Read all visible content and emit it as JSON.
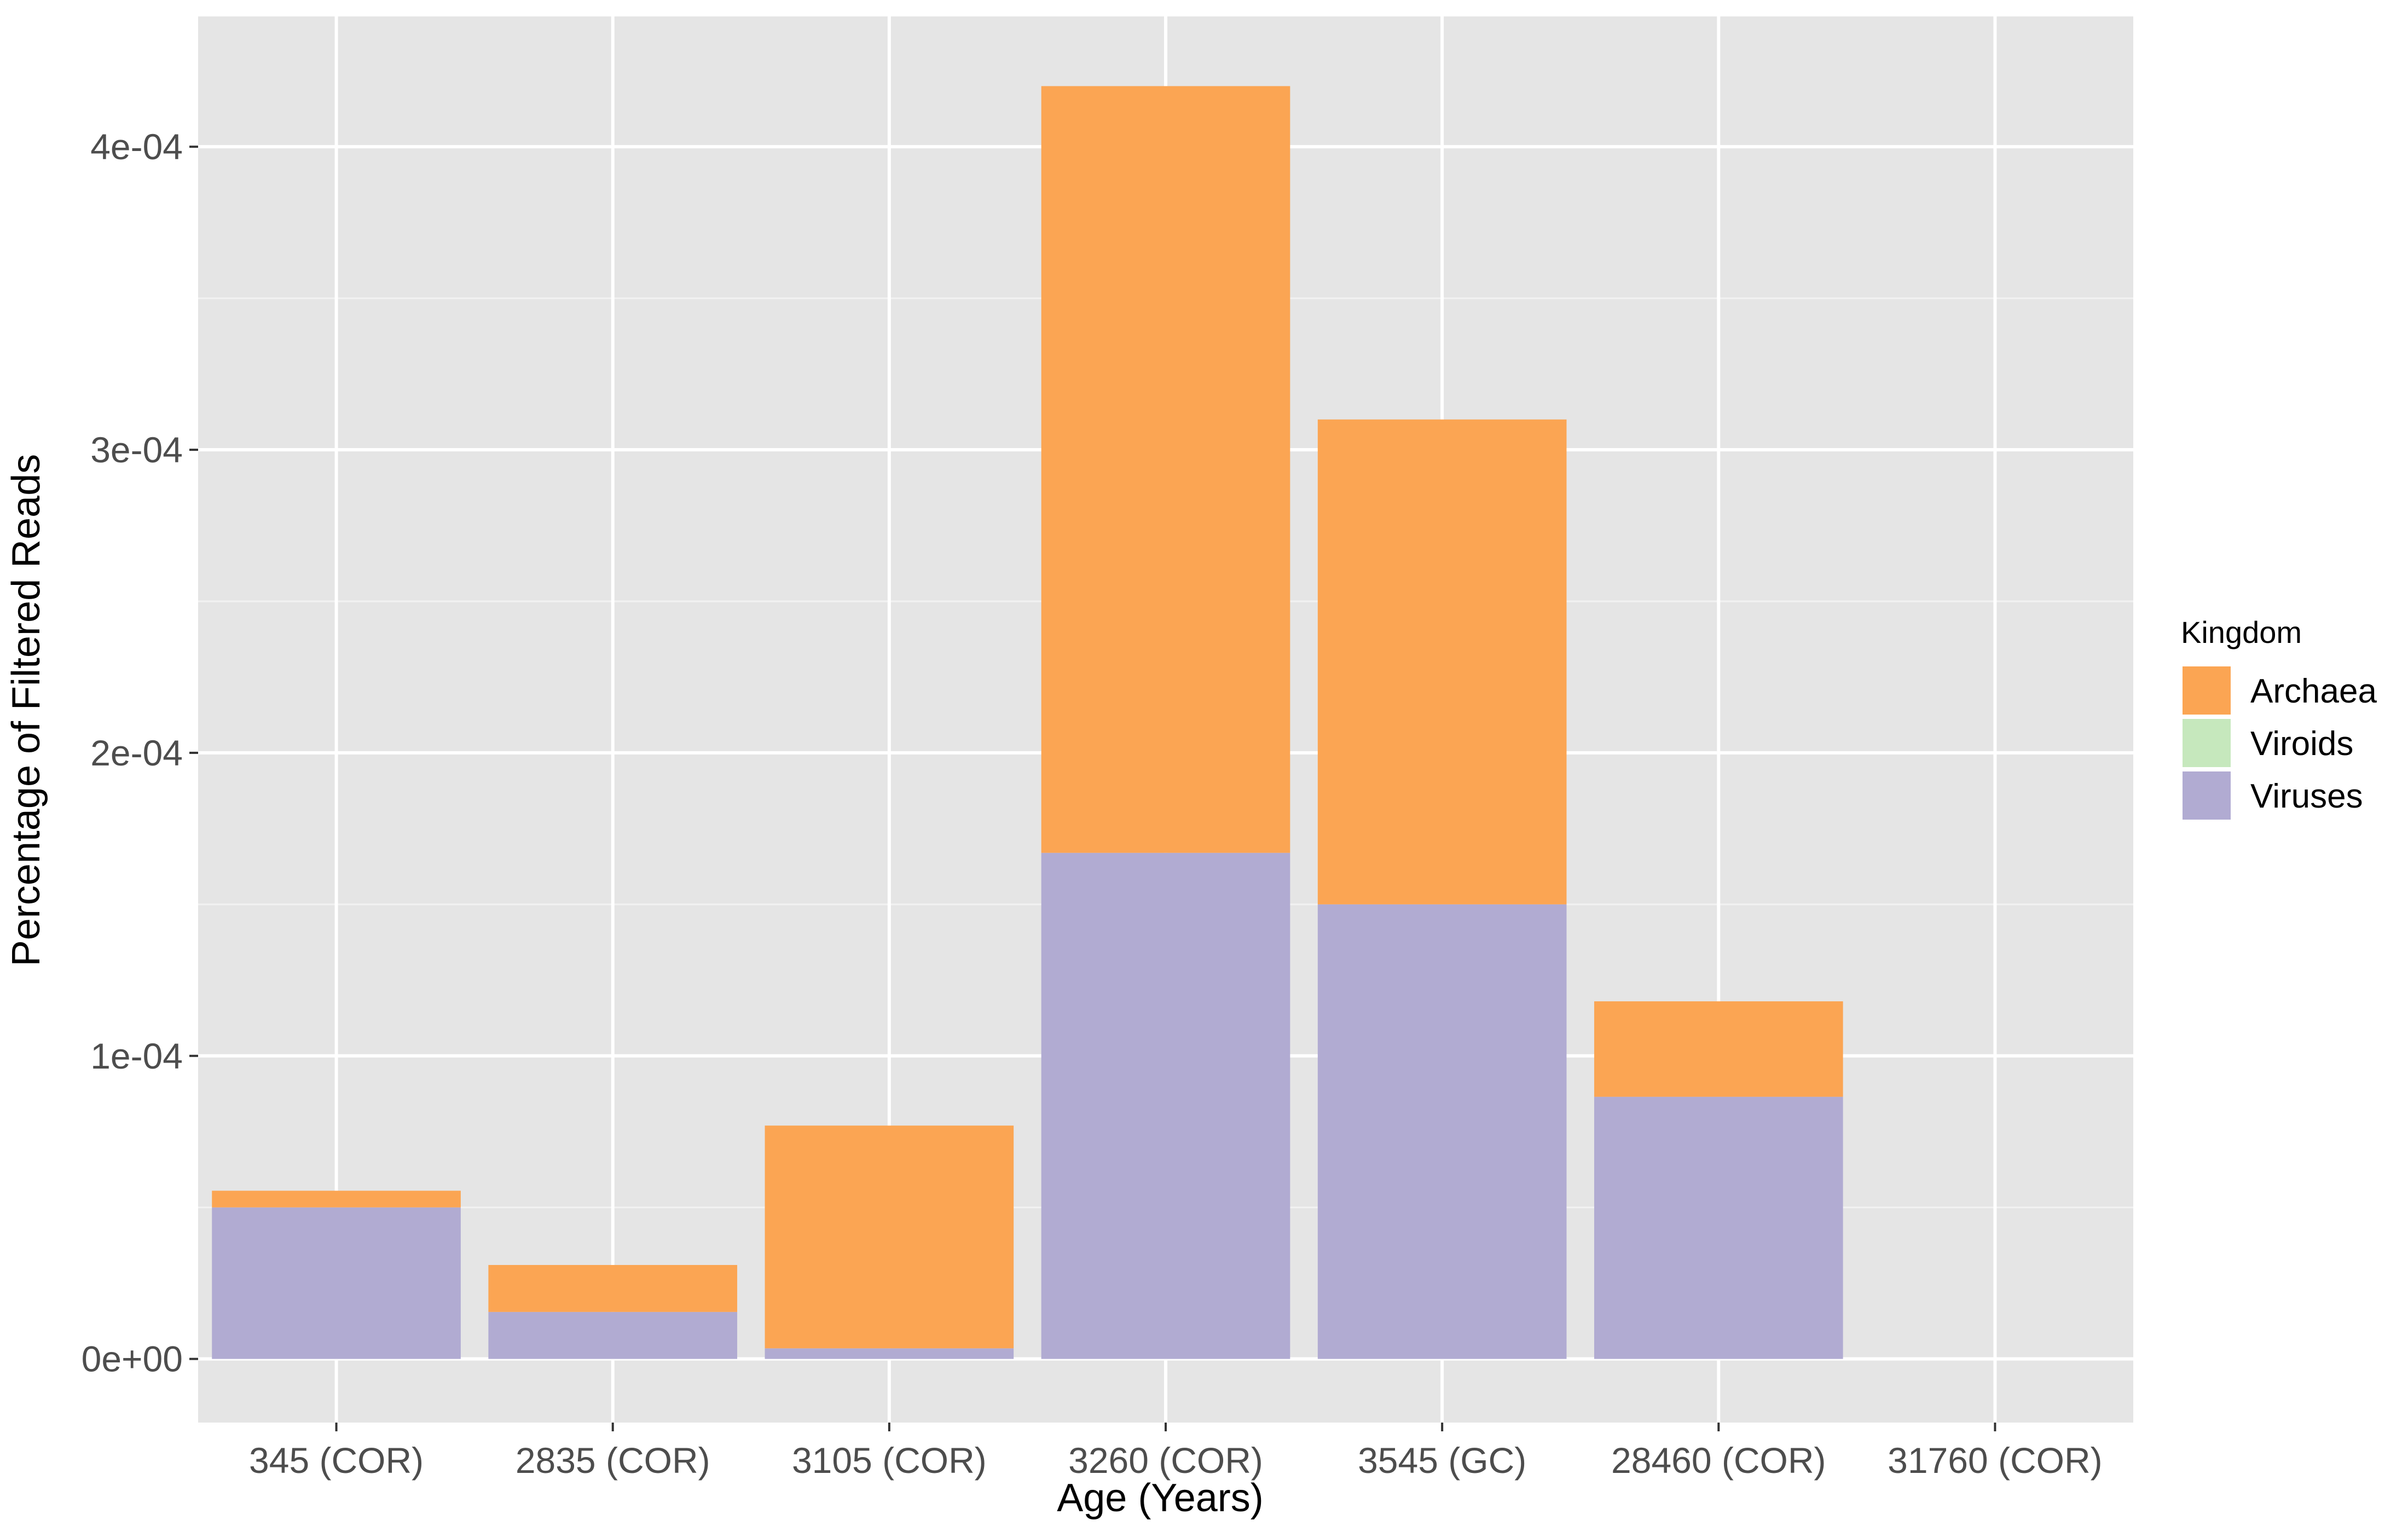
{
  "chart_data": {
    "type": "bar",
    "stacked": true,
    "xlabel": "Age (Years)",
    "ylabel": "Percentage of Filtered Reads",
    "categories": [
      "345 (COR)",
      "2835 (COR)",
      "3105 (COR)",
      "3260 (COR)",
      "3545 (GC)",
      "28460 (COR)",
      "31760 (COR)"
    ],
    "ylim": [
      -2.1e-05,
      0.000443
    ],
    "yticks": [
      0,
      0.0001,
      0.0002,
      0.0003,
      0.0004
    ],
    "ytick_labels": [
      "0e+00",
      "1e-04",
      "2e-04",
      "3e-04",
      "4e-04"
    ],
    "grid": true,
    "legend": {
      "title": "Kingdom",
      "position": "right"
    },
    "series": [
      {
        "name": "Viruses",
        "color": "#b1abd2",
        "values": [
          5e-05,
          1.55e-05,
          3.5e-06,
          0.000167,
          0.00015,
          8.65e-05,
          0
        ]
      },
      {
        "name": "Viroids",
        "color": "#c6e8bd",
        "values": [
          0,
          0,
          0,
          0,
          0,
          0,
          0
        ]
      },
      {
        "name": "Archaea",
        "color": "#fba553",
        "values": [
          5.5e-06,
          1.55e-05,
          7.35e-05,
          0.000253,
          0.00016,
          3.15e-05,
          0
        ]
      }
    ],
    "legend_order": [
      "Archaea",
      "Viroids",
      "Viruses"
    ]
  }
}
